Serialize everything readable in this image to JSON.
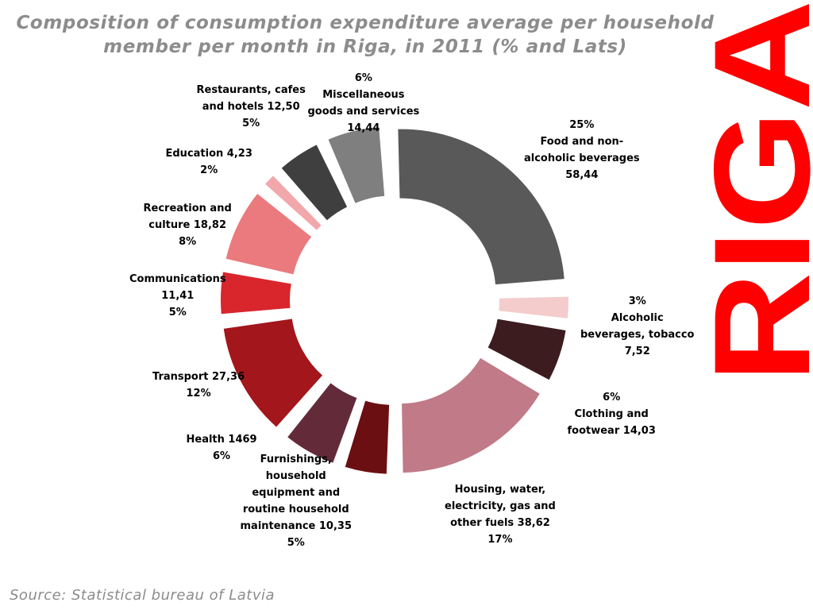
{
  "title": {
    "line1": "Composition of consumption expenditure average per household",
    "line2": "member per month in Riga, in 2011 (% and Lats)"
  },
  "logo_text": "RIGA",
  "source": "Source: Statistical bureau of Latvia",
  "colors": {
    "title": "#8c8c8c",
    "logo": "#ff0000",
    "label": "#000000"
  },
  "chart_data": {
    "type": "pie",
    "variant": "donut",
    "unit_percent": "%",
    "unit_value": "Lats",
    "slices": [
      {
        "name": "Food and non-alcoholic beverages",
        "percent": 25,
        "value": "58,44",
        "color": "#595959",
        "label_lines": [
          "25%",
          "Food and non-",
          "alcoholic beverages",
          "58,44"
        ]
      },
      {
        "name": "Alcoholic beverages, tobacco",
        "percent": 3,
        "value": "7,52",
        "color": "#f4cccc",
        "label_lines": [
          "3%",
          "Alcoholic",
          "beverages, tobacco",
          "7,52"
        ]
      },
      {
        "name": "Clothing and footwear",
        "percent": 6,
        "value": "14,03",
        "color": "#3d1c1f",
        "label_lines": [
          "6%",
          "Clothing and",
          "footwear 14,03"
        ]
      },
      {
        "name": "Housing, water, electricity, gas and other fuels",
        "percent": 17,
        "value": "38,62",
        "color": "#c07a88",
        "label_lines": [
          "Housing, water,",
          "electricity, gas and",
          "other fuels 38,62",
          "17%"
        ]
      },
      {
        "name": "Furnishings, household equipment and routine household maintenance",
        "percent": 5,
        "value": "10,35",
        "color": "#6b0f13",
        "label_lines": [
          "Furnishings,",
          "household",
          "equipment and",
          "routine household",
          "maintenance 10,35",
          "5%"
        ]
      },
      {
        "name": "Health",
        "percent": 6,
        "value": "1469",
        "color": "#632b3a",
        "label_lines": [
          "Health 1469",
          "6%"
        ]
      },
      {
        "name": "Transport",
        "percent": 12,
        "value": "27,36",
        "color": "#a3161c",
        "label_lines": [
          "Transport 27,36",
          "12%"
        ]
      },
      {
        "name": "Communications",
        "percent": 5,
        "value": "11,41",
        "color": "#d9252c",
        "label_lines": [
          "Communications",
          "11,41",
          "5%"
        ]
      },
      {
        "name": "Recreation and culture",
        "percent": 8,
        "value": "18,82",
        "color": "#ea7a7d",
        "label_lines": [
          "Recreation and",
          "culture 18,82",
          "8%"
        ]
      },
      {
        "name": "Education",
        "percent": 2,
        "value": "4,23",
        "color": "#f2a7ab",
        "label_lines": [
          "Education 4,23",
          "2%"
        ]
      },
      {
        "name": "Restaurants, cafes and hotels",
        "percent": 5,
        "value": "12,50",
        "color": "#3f3f3f",
        "label_lines": [
          "Restaurants, cafes",
          "and hotels 12,50",
          "5%"
        ]
      },
      {
        "name": "Miscellaneous goods and services",
        "percent": 6,
        "value": "14,44",
        "color": "#7f7f7f",
        "label_lines": [
          "6%",
          "Miscellaneous",
          "goods and services",
          "14,44"
        ]
      }
    ]
  }
}
